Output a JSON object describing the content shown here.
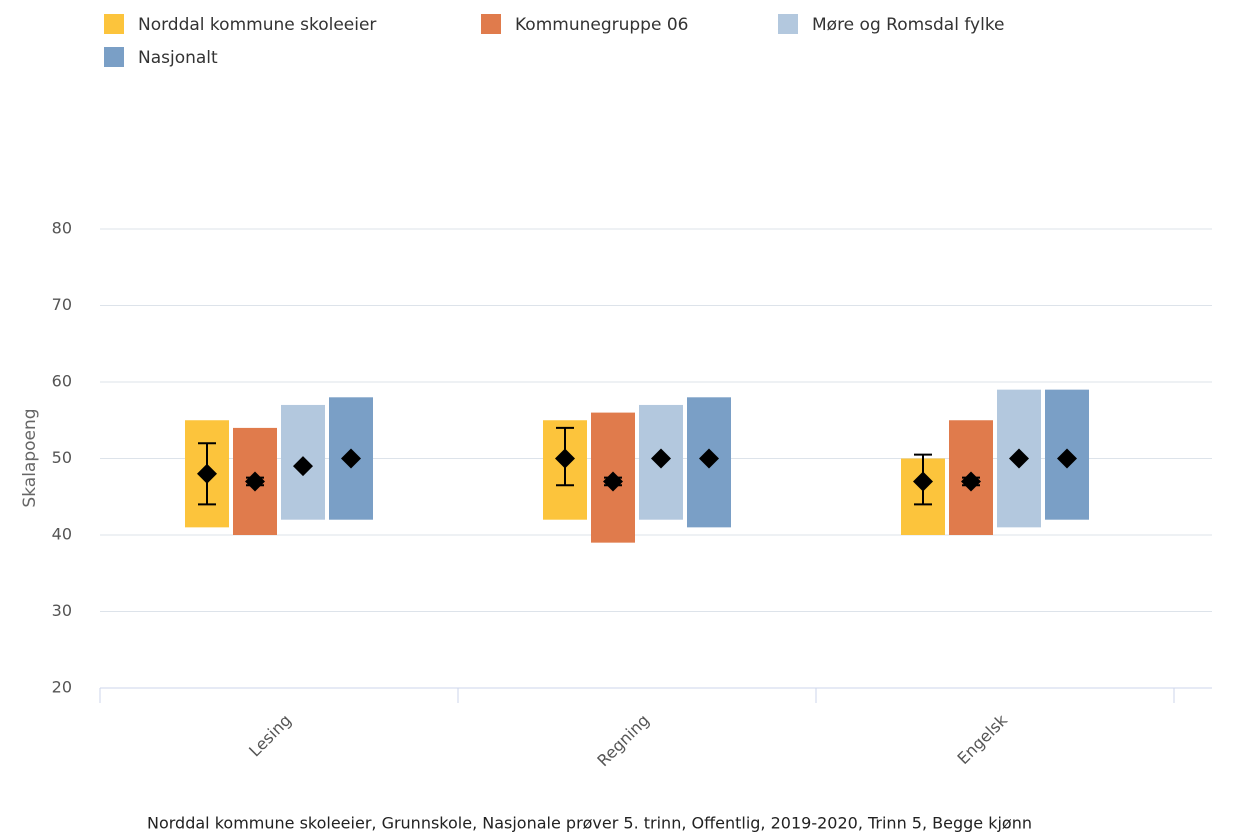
{
  "chart_data": {
    "type": "range_bar",
    "y_label": "Skalapoeng",
    "footnote": "Norddal kommune skoleeier, Grunnskole, Nasjonale prøver 5. trinn, Offentlig, 2019-2020, Trinn 5, Begge kjønn",
    "categories": [
      "Lesing",
      "Regning",
      "Engelsk"
    ],
    "ylim": [
      20,
      80
    ],
    "yticks": [
      20,
      30,
      40,
      50,
      60,
      70,
      80
    ],
    "grid": true,
    "series": [
      {
        "name": "Norddal kommune skoleeier",
        "color": "#fcc43c",
        "low": [
          41,
          42,
          40
        ],
        "high": [
          55,
          55,
          50
        ],
        "mean": [
          48,
          50,
          47
        ],
        "error_low": [
          44,
          46.5,
          44
        ],
        "error_high": [
          52,
          54,
          50.5
        ]
      },
      {
        "name": "Kommunegruppe 06",
        "color": "#e07b4c",
        "low": [
          40,
          39,
          40
        ],
        "high": [
          54,
          56,
          55
        ],
        "mean": [
          47,
          47,
          47
        ],
        "error_low": [
          46.5,
          46.5,
          46.5
        ],
        "error_high": [
          47.5,
          47.5,
          47.5
        ]
      },
      {
        "name": "Møre og Romsdal fylke",
        "color": "#b3c8de",
        "low": [
          42,
          42,
          41
        ],
        "high": [
          57,
          57,
          59
        ],
        "mean": [
          49,
          50,
          50
        ]
      },
      {
        "name": "Nasjonalt",
        "color": "#7a9fc6",
        "low": [
          42,
          41,
          42
        ],
        "high": [
          58,
          58,
          59
        ],
        "mean": [
          50,
          50,
          50
        ]
      }
    ]
  }
}
